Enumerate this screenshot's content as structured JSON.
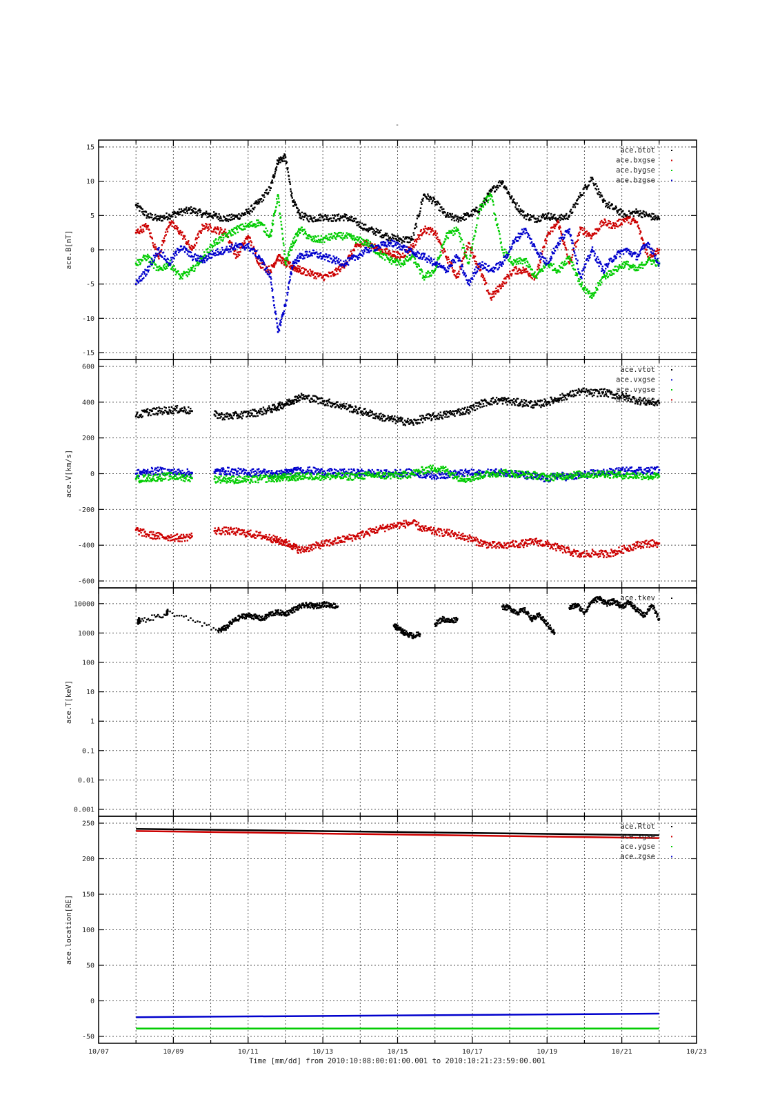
{
  "figure": {
    "title": "-",
    "xlabel": "Time [mm/dd]  from 2010:10:08:00:01:00.001  to  2010:10:21:23:59:00.001",
    "x_tick_labels": [
      "10/07",
      "10/09",
      "10/11",
      "10/13",
      "10/15",
      "10/17",
      "10/19",
      "10/21",
      "10/23"
    ]
  },
  "chart_data": [
    {
      "type": "scatter",
      "ylabel": "ace.B[nT]",
      "xlim": [
        0,
        16
      ],
      "ylim": [
        -15,
        15
      ],
      "y_ticks": [
        15,
        10,
        5,
        0,
        -5,
        -10,
        -15
      ],
      "y_scale": "linear",
      "grid": true,
      "legend": "top-right",
      "series": [
        {
          "name": "ace.btot",
          "color": "#000000",
          "x": [
            1.0,
            1.3,
            1.6,
            1.9,
            2.2,
            2.5,
            2.8,
            3.1,
            3.4,
            3.7,
            4.0,
            4.3,
            4.6,
            4.8,
            5.0,
            5.2,
            5.4,
            5.7,
            6.0,
            6.3,
            6.6,
            6.9,
            7.2,
            7.5,
            7.8,
            8.1,
            8.4,
            8.7,
            9.0,
            9.3,
            9.6,
            9.9,
            10.2,
            10.5,
            10.8,
            11.1,
            11.4,
            11.7,
            12.0,
            12.3,
            12.6,
            12.9,
            13.2,
            13.5,
            13.8,
            14.1,
            14.4,
            14.7,
            15.0
          ],
          "y": [
            6.5,
            5.0,
            4.5,
            5.0,
            5.5,
            5.8,
            5.2,
            5.0,
            4.5,
            4.8,
            5.5,
            7.0,
            9.0,
            13.0,
            13.5,
            7.0,
            5.0,
            4.5,
            4.8,
            4.6,
            4.8,
            4.0,
            3.0,
            2.5,
            1.8,
            1.5,
            1.5,
            8.0,
            7.0,
            5.0,
            4.5,
            5.0,
            6.0,
            8.5,
            10.0,
            7.0,
            5.0,
            4.5,
            5.0,
            4.5,
            5.0,
            8.0,
            10.5,
            7.0,
            6.0,
            5.0,
            5.5,
            5.0,
            4.5
          ]
        },
        {
          "name": "ace.bxgse",
          "color": "#cc0000",
          "x": [
            1.0,
            1.3,
            1.6,
            1.9,
            2.2,
            2.5,
            2.8,
            3.1,
            3.4,
            3.7,
            4.0,
            4.3,
            4.6,
            4.8,
            5.0,
            5.2,
            5.4,
            5.7,
            6.0,
            6.3,
            6.6,
            6.9,
            7.2,
            7.5,
            7.8,
            8.1,
            8.4,
            8.7,
            9.0,
            9.3,
            9.6,
            9.9,
            10.2,
            10.5,
            10.8,
            11.1,
            11.4,
            11.7,
            12.0,
            12.3,
            12.6,
            12.9,
            13.2,
            13.5,
            13.8,
            14.1,
            14.4,
            14.7,
            15.0
          ],
          "y": [
            2.5,
            3.5,
            -1.0,
            4.0,
            2.5,
            0.0,
            3.5,
            3.0,
            2.5,
            -1.0,
            2.0,
            -2.0,
            -3.0,
            -1.0,
            -2.0,
            -2.5,
            -3.0,
            -3.5,
            -4.0,
            -3.5,
            -2.0,
            0.5,
            1.0,
            0.0,
            -0.5,
            -1.0,
            0.5,
            3.0,
            2.5,
            -1.0,
            -4.0,
            1.0,
            -3.0,
            -7.0,
            -5.0,
            -3.0,
            -3.0,
            -4.0,
            2.0,
            4.0,
            -2.0,
            3.0,
            2.0,
            4.0,
            3.5,
            4.5,
            4.0,
            -1.0,
            0.0
          ]
        },
        {
          "name": "ace.bygse",
          "color": "#00cc00",
          "x": [
            1.0,
            1.3,
            1.6,
            1.9,
            2.2,
            2.5,
            2.8,
            3.1,
            3.4,
            3.7,
            4.0,
            4.3,
            4.6,
            4.8,
            5.0,
            5.2,
            5.4,
            5.7,
            6.0,
            6.3,
            6.6,
            6.9,
            7.2,
            7.5,
            7.8,
            8.1,
            8.4,
            8.7,
            9.0,
            9.3,
            9.6,
            9.9,
            10.2,
            10.5,
            10.8,
            11.1,
            11.4,
            11.7,
            12.0,
            12.3,
            12.6,
            12.9,
            13.2,
            13.5,
            13.8,
            14.1,
            14.4,
            14.7,
            15.0
          ],
          "y": [
            -2.0,
            -1.0,
            -3.0,
            -2.0,
            -4.0,
            -3.0,
            -1.0,
            1.0,
            2.0,
            3.0,
            3.5,
            4.0,
            2.0,
            8.0,
            -2.0,
            1.0,
            3.0,
            1.5,
            1.5,
            2.0,
            2.0,
            1.5,
            1.0,
            -0.5,
            -1.5,
            -2.0,
            -1.0,
            -4.0,
            -3.0,
            2.0,
            3.0,
            -2.0,
            6.0,
            8.0,
            0.0,
            -2.0,
            -1.5,
            -4.0,
            -2.0,
            -3.0,
            -1.0,
            -5.0,
            -7.0,
            -4.0,
            -3.0,
            -2.0,
            -3.0,
            -1.5,
            -2.0
          ]
        },
        {
          "name": "ace.bzgse",
          "color": "#0000cc",
          "x": [
            1.0,
            1.3,
            1.6,
            1.9,
            2.2,
            2.5,
            2.8,
            3.1,
            3.4,
            3.7,
            4.0,
            4.3,
            4.6,
            4.8,
            5.0,
            5.2,
            5.4,
            5.7,
            6.0,
            6.3,
            6.6,
            6.9,
            7.2,
            7.5,
            7.8,
            8.1,
            8.4,
            8.7,
            9.0,
            9.3,
            9.6,
            9.9,
            10.2,
            10.5,
            10.8,
            11.1,
            11.4,
            11.7,
            12.0,
            12.3,
            12.6,
            12.9,
            13.2,
            13.5,
            13.8,
            14.1,
            14.4,
            14.7,
            15.0
          ],
          "y": [
            -5.0,
            -3.0,
            0.0,
            -2.0,
            0.5,
            -1.0,
            -1.5,
            -0.5,
            0.0,
            0.5,
            0.5,
            -1.0,
            -4.0,
            -12.0,
            -8.0,
            -2.0,
            -1.0,
            -0.5,
            -1.0,
            -1.5,
            -2.0,
            -1.0,
            0.0,
            0.5,
            1.0,
            0.5,
            -0.5,
            -1.0,
            -2.0,
            -3.0,
            -1.0,
            -5.0,
            -2.0,
            -3.0,
            -2.0,
            1.0,
            3.0,
            0.0,
            -2.0,
            1.0,
            3.0,
            -4.0,
            0.0,
            -3.0,
            -1.0,
            0.0,
            -1.0,
            1.0,
            -2.0
          ]
        }
      ]
    },
    {
      "type": "scatter",
      "ylabel": "ace.V[km/s]",
      "xlim": [
        0,
        16
      ],
      "ylim": [
        -600,
        600
      ],
      "y_ticks": [
        600,
        400,
        200,
        0,
        -200,
        -400,
        -600
      ],
      "y_scale": "linear",
      "grid": true,
      "legend": "top-right",
      "series": [
        {
          "name": "ace.vtot",
          "color": "#000000",
          "x": [
            1.0,
            1.3,
            1.6,
            1.9,
            2.2,
            2.5,
            2.8,
            3.1,
            3.4,
            3.7,
            4.0,
            4.3,
            4.6,
            4.8,
            5.0,
            5.2,
            5.4,
            5.7,
            6.0,
            6.3,
            6.6,
            6.9,
            7.2,
            7.5,
            7.8,
            8.1,
            8.4,
            8.7,
            9.0,
            9.3,
            9.6,
            9.9,
            10.2,
            10.5,
            10.8,
            11.1,
            11.4,
            11.7,
            12.0,
            12.3,
            12.6,
            12.9,
            13.2,
            13.5,
            13.8,
            14.1,
            14.4,
            14.7,
            15.0
          ],
          "y": [
            320,
            345,
            350,
            355,
            360,
            350,
            null,
            330,
            320,
            325,
            335,
            345,
            360,
            375,
            390,
            410,
            430,
            420,
            405,
            390,
            375,
            355,
            340,
            320,
            305,
            295,
            285,
            310,
            320,
            330,
            345,
            355,
            390,
            405,
            410,
            400,
            395,
            385,
            400,
            420,
            440,
            460,
            450,
            455,
            440,
            430,
            410,
            400,
            395
          ]
        },
        {
          "name": "ace.vxgse",
          "color": "#0000cc",
          "x": [
            1.0,
            1.3,
            1.6,
            1.9,
            2.2,
            2.5,
            2.8,
            3.1,
            3.4,
            3.7,
            4.0,
            4.3,
            4.6,
            4.8,
            5.0,
            5.2,
            5.4,
            5.7,
            6.0,
            6.3,
            6.6,
            6.9,
            7.2,
            7.5,
            7.8,
            8.1,
            8.4,
            8.7,
            9.0,
            9.3,
            9.6,
            9.9,
            10.2,
            10.5,
            10.8,
            11.1,
            11.4,
            11.7,
            12.0,
            12.3,
            12.6,
            12.9,
            13.2,
            13.5,
            13.8,
            14.1,
            14.4,
            14.7,
            15.0
          ],
          "y": [
            0,
            10,
            15,
            10,
            5,
            5,
            null,
            10,
            15,
            10,
            5,
            10,
            0,
            -5,
            5,
            10,
            20,
            15,
            10,
            5,
            5,
            5,
            5,
            0,
            0,
            5,
            5,
            -5,
            -10,
            -5,
            0,
            5,
            0,
            5,
            10,
            0,
            -10,
            -20,
            -30,
            -10,
            -20,
            -10,
            0,
            5,
            10,
            15,
            20,
            15,
            20
          ]
        },
        {
          "name": "ace.vygse",
          "color": "#00cc00",
          "x": [
            1.0,
            1.3,
            1.6,
            1.9,
            2.2,
            2.5,
            2.8,
            3.1,
            3.4,
            3.7,
            4.0,
            4.3,
            4.6,
            4.8,
            5.0,
            5.2,
            5.4,
            5.7,
            6.0,
            6.3,
            6.6,
            6.9,
            7.2,
            7.5,
            7.8,
            8.1,
            8.4,
            8.7,
            9.0,
            9.3,
            9.6,
            9.9,
            10.2,
            10.5,
            10.8,
            11.1,
            11.4,
            11.7,
            12.0,
            12.3,
            12.6,
            12.9,
            13.2,
            13.5,
            13.8,
            14.1,
            14.4,
            14.7,
            15.0
          ],
          "y": [
            -30,
            -25,
            -20,
            -15,
            -20,
            -25,
            null,
            -30,
            -30,
            -35,
            -35,
            -30,
            -25,
            -25,
            -20,
            -20,
            -15,
            -15,
            -15,
            -15,
            -15,
            -15,
            -10,
            -10,
            -10,
            -10,
            0,
            20,
            30,
            20,
            -20,
            -30,
            -10,
            0,
            5,
            0,
            -5,
            -10,
            -20,
            -15,
            -10,
            -5,
            -5,
            0,
            -5,
            -10,
            -10,
            -15,
            -15
          ]
        },
        {
          "name": "ace.vzgse",
          "color": "#cc0000",
          "x": [
            1.0,
            1.3,
            1.6,
            1.9,
            2.2,
            2.5,
            2.8,
            3.1,
            3.4,
            3.7,
            4.0,
            4.3,
            4.6,
            4.8,
            5.0,
            5.2,
            5.4,
            5.7,
            6.0,
            6.3,
            6.6,
            6.9,
            7.2,
            7.5,
            7.8,
            8.1,
            8.4,
            8.7,
            9.0,
            9.3,
            9.6,
            9.9,
            10.2,
            10.5,
            10.8,
            11.1,
            11.4,
            11.7,
            12.0,
            12.3,
            12.6,
            12.9,
            13.2,
            13.5,
            13.8,
            14.1,
            14.4,
            14.7,
            15.0
          ],
          "y": [
            -315,
            -340,
            -350,
            -355,
            -360,
            -350,
            null,
            -320,
            -320,
            -325,
            -335,
            -345,
            -360,
            -375,
            -385,
            -405,
            -430,
            -410,
            -395,
            -380,
            -365,
            -350,
            -330,
            -310,
            -295,
            -285,
            -275,
            -310,
            -325,
            -330,
            -345,
            -360,
            -385,
            -400,
            -405,
            -395,
            -390,
            -380,
            -395,
            -415,
            -435,
            -455,
            -445,
            -450,
            -440,
            -420,
            -400,
            -390,
            -390
          ]
        }
      ]
    },
    {
      "type": "scatter",
      "ylabel": "ace.T[keV]",
      "xlim": [
        0,
        16
      ],
      "ylim": [
        0.001,
        20000
      ],
      "y_ticks": [
        10000,
        1000,
        100,
        10,
        1,
        0.1,
        0.01,
        0.001
      ],
      "y_tick_labels": [
        "10000",
        "1000",
        "100",
        "10",
        "1",
        "0.1",
        "0.01",
        "0.001"
      ],
      "y_scale": "log",
      "grid": true,
      "legend": "top-right",
      "series": [
        {
          "name": "ace.tkev",
          "color": "#000000",
          "x": [
            1.05,
            1.08,
            1.1,
            1.82,
            1.85,
            3.2,
            3.4,
            3.6,
            3.8,
            4.0,
            4.2,
            4.4,
            4.6,
            4.8,
            5.0,
            5.2,
            5.4,
            5.6,
            5.8,
            6.0,
            6.2,
            6.4,
            6.6,
            6.8,
            7.0,
            7.2,
            7.4,
            7.6,
            7.8,
            7.9,
            8.0,
            8.1,
            8.2,
            8.4,
            8.6,
            8.8,
            9.0,
            9.2,
            9.4,
            9.6,
            9.8,
            10.0,
            10.2,
            10.4,
            10.6,
            10.8,
            11.0,
            11.2,
            11.4,
            11.6,
            11.8,
            12.0,
            12.2,
            12.4,
            12.6,
            12.8,
            13.0,
            13.2,
            13.4,
            13.6,
            13.8,
            14.0,
            14.2,
            14.4,
            14.6,
            14.8,
            15.0
          ],
          "y": [
            2200,
            2800,
            2500,
            4500,
            5500,
            1200,
            1500,
            2500,
            3500,
            4000,
            3500,
            3000,
            4500,
            5000,
            4500,
            6000,
            8000,
            9000,
            8000,
            9500,
            9000,
            8000,
            null,
            null,
            null,
            null,
            null,
            null,
            null,
            1800,
            1500,
            1200,
            1000,
            800,
            900,
            null,
            2000,
            3000,
            2500,
            3000,
            null,
            null,
            null,
            null,
            null,
            8000,
            7000,
            5000,
            6000,
            3000,
            4000,
            2000,
            1000,
            null,
            7000,
            9000,
            5000,
            12000,
            15000,
            10000,
            12000,
            8000,
            11000,
            6000,
            4000,
            9000,
            3000
          ]
        }
      ]
    },
    {
      "type": "line",
      "ylabel": "ace.location[RE]",
      "xlim": [
        0,
        16
      ],
      "ylim": [
        -50,
        250
      ],
      "y_ticks": [
        250,
        200,
        150,
        100,
        50,
        0,
        -50
      ],
      "y_scale": "linear",
      "grid": true,
      "legend": "top-right",
      "series": [
        {
          "name": "ace.Rtot",
          "color": "#000000",
          "x": [
            1.0,
            15.0
          ],
          "y": [
            242,
            233
          ]
        },
        {
          "name": "ace.xgse",
          "color": "#cc0000",
          "x": [
            1.0,
            15.0
          ],
          "y": [
            239,
            229
          ]
        },
        {
          "name": "ace.ygse",
          "color": "#00cc00",
          "x": [
            1.0,
            15.0
          ],
          "y": [
            -39,
            -39
          ]
        },
        {
          "name": "ace.zgse",
          "color": "#0000cc",
          "x": [
            1.0,
            15.0
          ],
          "y": [
            -23,
            -18
          ]
        }
      ]
    }
  ]
}
